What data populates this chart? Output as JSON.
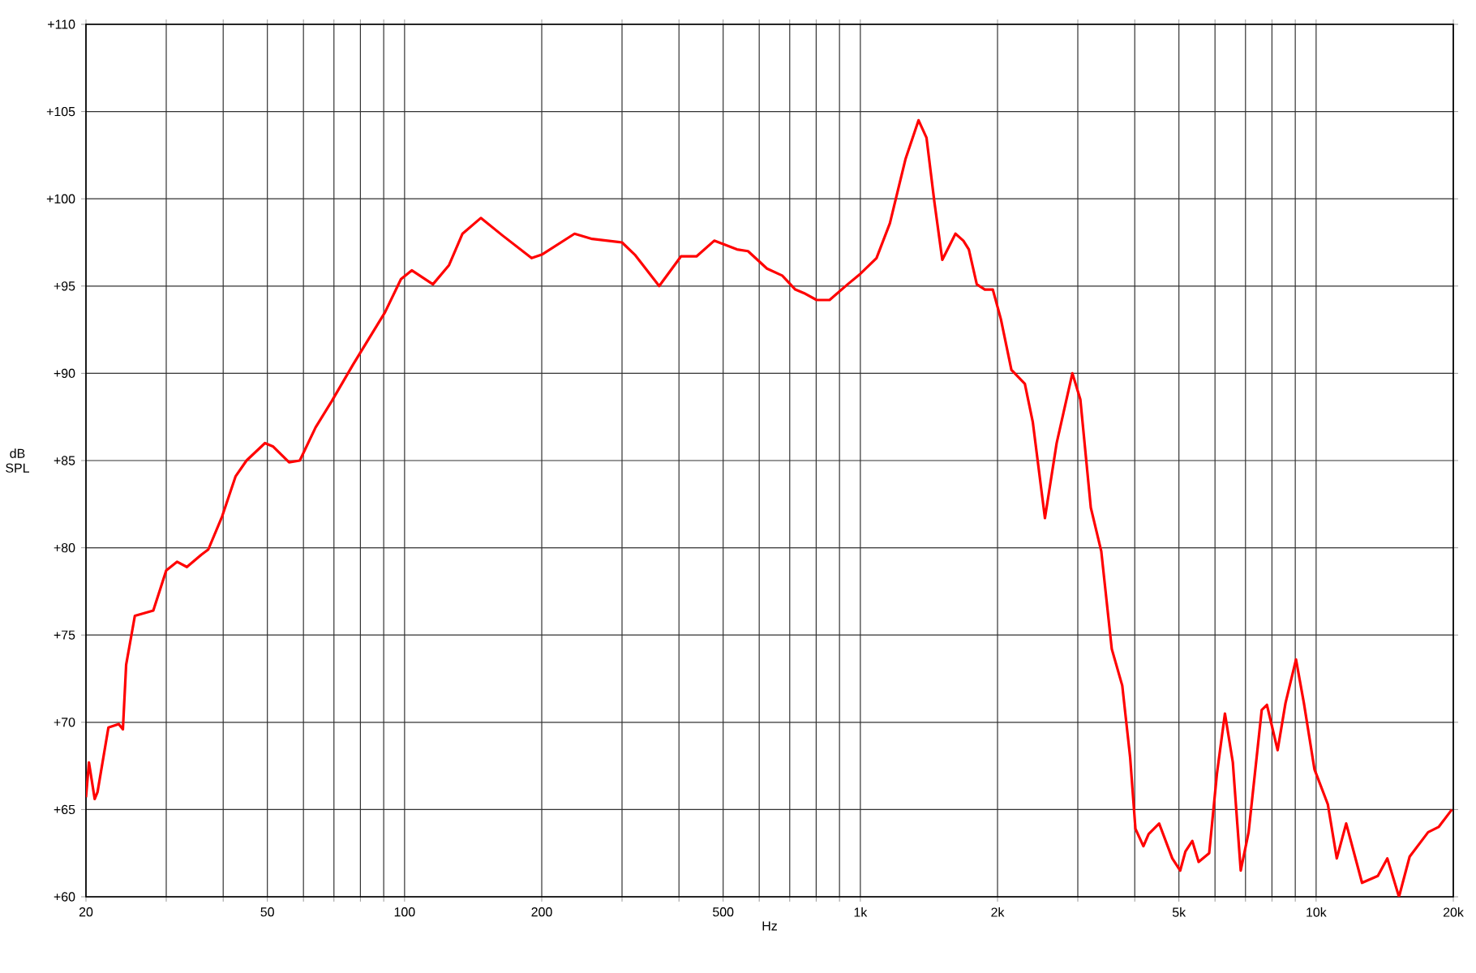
{
  "chart_data": {
    "type": "line",
    "xlabel": "Hz",
    "ylabel": "dB SPL",
    "log": "x",
    "grid": true,
    "marker": "none",
    "line_style": "solid",
    "xlim": [
      20,
      20000
    ],
    "ylim": [
      60,
      110
    ],
    "xticks": [
      20,
      {
        "value": 30,
        "label": null
      },
      {
        "value": 40,
        "label": null
      },
      50,
      {
        "value": 60,
        "label": null
      },
      {
        "value": 70,
        "label": null
      },
      {
        "value": 80,
        "label": null
      },
      {
        "value": 90,
        "label": null
      },
      100,
      200,
      {
        "value": 300,
        "label": null
      },
      {
        "value": 400,
        "label": null
      },
      500,
      {
        "value": 600,
        "label": null
      },
      {
        "value": 700,
        "label": null
      },
      {
        "value": 800,
        "label": null
      },
      {
        "value": 900,
        "label": null
      },
      {
        "value": 1000,
        "label": "1k"
      },
      {
        "value": 2000,
        "label": "2k"
      },
      {
        "value": 3000,
        "label": null
      },
      {
        "value": 4000,
        "label": null
      },
      {
        "value": 5000,
        "label": "5k"
      },
      {
        "value": 6000,
        "label": null
      },
      {
        "value": 7000,
        "label": null
      },
      {
        "value": 8000,
        "label": null
      },
      {
        "value": 9000,
        "label": null
      },
      {
        "value": 10000,
        "label": "10k"
      },
      {
        "value": 20000,
        "label": "20k"
      }
    ],
    "yticks": [
      {
        "value": 60,
        "label": "+60"
      },
      {
        "value": 65,
        "label": "+65"
      },
      {
        "value": 70,
        "label": "+70"
      },
      {
        "value": 75,
        "label": "+75"
      },
      {
        "value": 80,
        "label": "+80"
      },
      {
        "value": 85,
        "label": "+85"
      },
      {
        "value": 90,
        "label": "+90"
      },
      {
        "value": 95,
        "label": "+95"
      },
      {
        "value": 100,
        "label": "+100"
      },
      {
        "value": 105,
        "label": "+105"
      },
      {
        "value": 110,
        "label": "+110"
      }
    ],
    "series": [
      {
        "color": "#ff0000",
        "x": [
          20,
          20.3,
          20.9,
          21.2,
          22.4,
          23.6,
          24.1,
          24.5,
          25.6,
          28.1,
          30,
          31.7,
          33.3,
          35.8,
          37.1,
          39.8,
          42.6,
          45,
          49.4,
          51.5,
          55.8,
          58.9,
          63.8,
          69.2,
          77.1,
          90.6,
          98.2,
          103.7,
          115.4,
          125.2,
          134,
          147,
          164,
          190,
          200,
          236,
          258,
          300,
          320,
          362,
          404,
          437,
          478,
          536,
          567,
          624,
          674,
          720,
          752,
          802,
          856,
          938,
          1000,
          1085,
          1161,
          1257,
          1342,
          1397,
          1454,
          1513,
          1617,
          1683,
          1730,
          1801,
          1876,
          1953,
          2034,
          2145,
          2296,
          2390,
          2541,
          2696,
          2919,
          3039,
          3204,
          3378,
          3562,
          3756,
          3908,
          4014,
          4179,
          4291,
          4525,
          4835,
          5032,
          5167,
          5350,
          5524,
          5826,
          6062,
          6309,
          6566,
          6833,
          7111,
          7597,
          7800,
          8232,
          8567,
          9034,
          9401,
          9918,
          10610,
          11100,
          11640,
          12610,
          13660,
          14330,
          15200,
          16040,
          17610,
          18570,
          19860
        ],
        "values": [
          65.7,
          67.7,
          65.6,
          66.0,
          69.7,
          69.9,
          69.6,
          73.3,
          76.1,
          76.4,
          78.7,
          79.2,
          78.9,
          79.6,
          79.9,
          81.8,
          84.1,
          85.0,
          86.0,
          85.8,
          84.9,
          85.0,
          86.9,
          88.4,
          90.5,
          93.5,
          95.4,
          95.9,
          95.1,
          96.2,
          98.0,
          98.9,
          97.9,
          96.6,
          96.8,
          98.0,
          97.7,
          97.5,
          96.8,
          95.0,
          96.7,
          96.7,
          97.6,
          97.1,
          97.0,
          96.0,
          95.6,
          94.8,
          94.6,
          94.2,
          94.2,
          95.1,
          95.7,
          96.6,
          98.6,
          102.3,
          104.5,
          103.5,
          99.8,
          96.5,
          98.0,
          97.6,
          97.1,
          95.1,
          94.8,
          94.8,
          93.1,
          90.2,
          89.4,
          87.2,
          81.7,
          86.0,
          90.0,
          88.5,
          82.3,
          79.8,
          74.2,
          72.1,
          68.0,
          63.9,
          62.9,
          63.6,
          64.2,
          62.2,
          61.5,
          62.6,
          63.2,
          62.0,
          62.5,
          67.1,
          70.5,
          67.7,
          61.5,
          63.7,
          70.7,
          71.0,
          68.4,
          71.1,
          73.6,
          71.1,
          67.3,
          65.3,
          62.2,
          64.2,
          60.8,
          61.2,
          62.2,
          60.0,
          62.3,
          63.7,
          64.0,
          65.0
        ]
      }
    ]
  }
}
